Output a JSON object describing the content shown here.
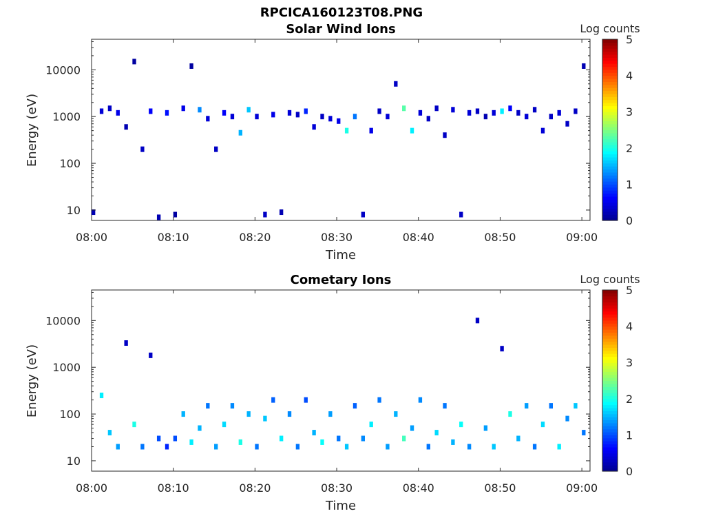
{
  "figure_title": "RPCICA160123T08.PNG",
  "colorbar": {
    "label": "Log counts",
    "ticks": [
      0,
      1,
      2,
      3,
      4,
      5
    ],
    "colors": [
      "#00008f",
      "#0000ff",
      "#0080ff",
      "#00ffff",
      "#80ff80",
      "#ffff00",
      "#ff8000",
      "#ff0000",
      "#800000"
    ]
  },
  "chart_data": [
    {
      "type": "heatmap",
      "title": "Solar Wind Ions",
      "xlabel": "Time",
      "ylabel": "Energy (eV)",
      "x_ticks": [
        "08:00",
        "08:10",
        "08:20",
        "08:30",
        "08:40",
        "08:50",
        "09:00"
      ],
      "y_ticks": [
        10,
        100,
        1000,
        10000
      ],
      "y_scale": "log",
      "xlim": [
        "08:00",
        "09:01"
      ],
      "ylim": [
        6,
        45000
      ],
      "clim": [
        0,
        5
      ],
      "cells": [
        [
          "08:00",
          9,
          0.2
        ],
        [
          "08:01",
          1300,
          0.4
        ],
        [
          "08:02",
          1500,
          0.3
        ],
        [
          "08:03",
          1200,
          0.5
        ],
        [
          "08:04",
          600,
          0.2
        ],
        [
          "08:05",
          15000,
          0.1
        ],
        [
          "08:06",
          200,
          0.3
        ],
        [
          "08:07",
          1300,
          0.6
        ],
        [
          "08:08",
          7,
          0.2
        ],
        [
          "08:09",
          1200,
          0.7
        ],
        [
          "08:10",
          8,
          0.1
        ],
        [
          "08:11",
          1500,
          0.5
        ],
        [
          "08:12",
          12000,
          0.1
        ],
        [
          "08:13",
          1400,
          1.3
        ],
        [
          "08:14",
          900,
          0.4
        ],
        [
          "08:15",
          200,
          0.3
        ],
        [
          "08:16",
          1200,
          0.6
        ],
        [
          "08:17",
          1000,
          0.4
        ],
        [
          "08:18",
          450,
          1.5
        ],
        [
          "08:19",
          1400,
          1.6
        ],
        [
          "08:20",
          1000,
          0.4
        ],
        [
          "08:21",
          8,
          0.3
        ],
        [
          "08:22",
          1100,
          0.5
        ],
        [
          "08:23",
          9,
          0.2
        ],
        [
          "08:24",
          1200,
          0.4
        ],
        [
          "08:25",
          1100,
          0.3
        ],
        [
          "08:26",
          1300,
          0.8
        ],
        [
          "08:27",
          600,
          0.4
        ],
        [
          "08:28",
          1000,
          0.3
        ],
        [
          "08:29",
          900,
          0.4
        ],
        [
          "08:30",
          800,
          0.5
        ],
        [
          "08:31",
          500,
          2.0
        ],
        [
          "08:32",
          1000,
          1.2
        ],
        [
          "08:33",
          8,
          0.3
        ],
        [
          "08:34",
          500,
          0.5
        ],
        [
          "08:35",
          1300,
          0.3
        ],
        [
          "08:36",
          1000,
          0.4
        ],
        [
          "08:37",
          5000,
          0.3
        ],
        [
          "08:38",
          1500,
          2.3
        ],
        [
          "08:39",
          500,
          1.8
        ],
        [
          "08:40",
          1200,
          0.4
        ],
        [
          "08:41",
          900,
          0.3
        ],
        [
          "08:42",
          1500,
          0.3
        ],
        [
          "08:43",
          400,
          0.3
        ],
        [
          "08:44",
          1400,
          0.4
        ],
        [
          "08:45",
          8,
          0.3
        ],
        [
          "08:46",
          1200,
          0.4
        ],
        [
          "08:47",
          1300,
          0.3
        ],
        [
          "08:48",
          1000,
          0.2
        ],
        [
          "08:49",
          1200,
          0.4
        ],
        [
          "08:50",
          1300,
          1.8
        ],
        [
          "08:51",
          1500,
          0.6
        ],
        [
          "08:52",
          1200,
          0.3
        ],
        [
          "08:53",
          1000,
          0.4
        ],
        [
          "08:54",
          1400,
          0.3
        ],
        [
          "08:55",
          500,
          0.4
        ],
        [
          "08:56",
          1000,
          0.3
        ],
        [
          "08:57",
          1200,
          0.4
        ],
        [
          "08:58",
          700,
          0.3
        ],
        [
          "08:59",
          1300,
          0.3
        ],
        [
          "09:00",
          12000,
          0.2
        ]
      ]
    },
    {
      "type": "heatmap",
      "title": "Cometary Ions",
      "xlabel": "Time",
      "ylabel": "Energy (eV)",
      "x_ticks": [
        "08:00",
        "08:10",
        "08:20",
        "08:30",
        "08:40",
        "08:50",
        "09:00"
      ],
      "y_ticks": [
        10,
        100,
        1000,
        10000
      ],
      "y_scale": "log",
      "xlim": [
        "08:00",
        "09:01"
      ],
      "ylim": [
        6,
        45000
      ],
      "clim": [
        0,
        5
      ],
      "cells": [
        [
          "08:01",
          250,
          1.8
        ],
        [
          "08:02",
          40,
          1.6
        ],
        [
          "08:03",
          20,
          1.4
        ],
        [
          "08:04",
          3300,
          0.3
        ],
        [
          "08:05",
          60,
          2.0
        ],
        [
          "08:06",
          20,
          1.2
        ],
        [
          "08:07",
          1800,
          0.3
        ],
        [
          "08:08",
          30,
          1.0
        ],
        [
          "08:09",
          20,
          0.8
        ],
        [
          "08:10",
          30,
          1.0
        ],
        [
          "08:11",
          100,
          1.5
        ],
        [
          "08:12",
          25,
          1.8
        ],
        [
          "08:13",
          50,
          1.5
        ],
        [
          "08:14",
          150,
          1.2
        ],
        [
          "08:15",
          20,
          1.4
        ],
        [
          "08:16",
          60,
          1.7
        ],
        [
          "08:17",
          150,
          1.3
        ],
        [
          "08:18",
          25,
          2.0
        ],
        [
          "08:19",
          100,
          1.5
        ],
        [
          "08:20",
          20,
          1.2
        ],
        [
          "08:21",
          80,
          1.6
        ],
        [
          "08:22",
          200,
          1.1
        ],
        [
          "08:23",
          30,
          1.8
        ],
        [
          "08:24",
          100,
          1.3
        ],
        [
          "08:25",
          20,
          1.2
        ],
        [
          "08:26",
          200,
          1.0
        ],
        [
          "08:27",
          40,
          1.5
        ],
        [
          "08:28",
          25,
          1.9
        ],
        [
          "08:29",
          100,
          1.4
        ],
        [
          "08:30",
          30,
          1.2
        ],
        [
          "08:31",
          20,
          1.6
        ],
        [
          "08:32",
          150,
          1.1
        ],
        [
          "08:33",
          30,
          1.3
        ],
        [
          "08:34",
          60,
          1.8
        ],
        [
          "08:35",
          200,
          1.2
        ],
        [
          "08:36",
          20,
          1.4
        ],
        [
          "08:37",
          100,
          1.5
        ],
        [
          "08:38",
          30,
          2.2
        ],
        [
          "08:39",
          50,
          1.4
        ],
        [
          "08:40",
          200,
          1.3
        ],
        [
          "08:41",
          20,
          1.2
        ],
        [
          "08:42",
          40,
          1.7
        ],
        [
          "08:43",
          150,
          1.2
        ],
        [
          "08:44",
          25,
          1.5
        ],
        [
          "08:45",
          60,
          1.9
        ],
        [
          "08:46",
          20,
          1.3
        ],
        [
          "08:47",
          10000,
          0.3
        ],
        [
          "08:48",
          50,
          1.4
        ],
        [
          "08:49",
          20,
          1.6
        ],
        [
          "08:50",
          2500,
          0.3
        ],
        [
          "08:51",
          100,
          2.0
        ],
        [
          "08:52",
          30,
          1.5
        ],
        [
          "08:53",
          150,
          1.4
        ],
        [
          "08:54",
          20,
          1.2
        ],
        [
          "08:55",
          60,
          1.7
        ],
        [
          "08:56",
          150,
          1.2
        ],
        [
          "08:57",
          20,
          1.8
        ],
        [
          "08:58",
          80,
          1.3
        ],
        [
          "08:59",
          150,
          1.6
        ],
        [
          "09:00",
          40,
          1.2
        ]
      ]
    }
  ]
}
